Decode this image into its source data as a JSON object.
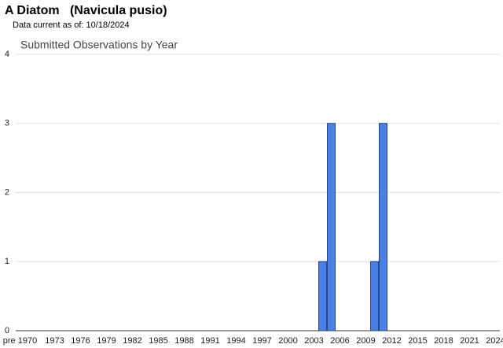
{
  "chart_data": {
    "type": "bar",
    "title": "A Diatom   (Navicula pusio)",
    "subtitle": "Data current as of: 10/18/2024",
    "chart_title": "Submitted Observations by Year",
    "categories": [
      "pre 1970",
      null,
      null,
      null,
      "1973",
      null,
      null,
      "1976",
      null,
      null,
      "1979",
      null,
      null,
      "1982",
      null,
      null,
      "1985",
      null,
      null,
      "1988",
      null,
      null,
      "1991",
      null,
      null,
      "1994",
      null,
      null,
      "1997",
      null,
      null,
      "2000",
      null,
      null,
      "2003",
      null,
      null,
      "2006",
      null,
      null,
      "2009",
      null,
      null,
      "2012",
      null,
      null,
      "2015",
      null,
      null,
      "2018",
      null,
      null,
      "2021",
      null,
      null,
      "2024"
    ],
    "values": [
      0,
      0,
      0,
      0,
      0,
      0,
      0,
      0,
      0,
      0,
      0,
      0,
      0,
      0,
      0,
      0,
      0,
      0,
      0,
      0,
      0,
      0,
      0,
      0,
      0,
      0,
      0,
      0,
      0,
      0,
      0,
      0,
      0,
      0,
      0,
      1,
      3,
      0,
      0,
      0,
      0,
      1,
      3,
      0,
      0,
      0,
      0,
      0,
      0,
      0,
      0,
      0,
      0,
      0,
      0,
      0
    ],
    "color": "#4a80e2",
    "ylim": [
      0,
      4
    ],
    "yticks": [
      0,
      1,
      2,
      3,
      4
    ],
    "grid": true
  }
}
